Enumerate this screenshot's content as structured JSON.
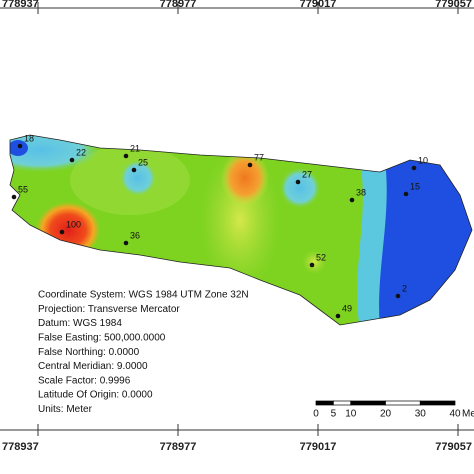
{
  "map": {
    "easting_ticks": [
      778937,
      778977,
      779017,
      779057
    ],
    "points": [
      18,
      22,
      21,
      25,
      77,
      27,
      38,
      10,
      15,
      55,
      100,
      36,
      52,
      49,
      2
    ],
    "info": [
      "Coordinate System: WGS 1984 UTM Zone 32N",
      "Projection: Transverse Mercator",
      "Datum: WGS 1984",
      "False Easting: 500,000.0000",
      "False Northing: 0.0000",
      "Central Meridian: 9.0000",
      "Scale Factor: 0.9996",
      "Latitude Of Origin: 0.0000",
      "Units: Meter"
    ],
    "scale_ticks": [
      0,
      5,
      10,
      20,
      30,
      40
    ],
    "scale_unit": "Me"
  }
}
